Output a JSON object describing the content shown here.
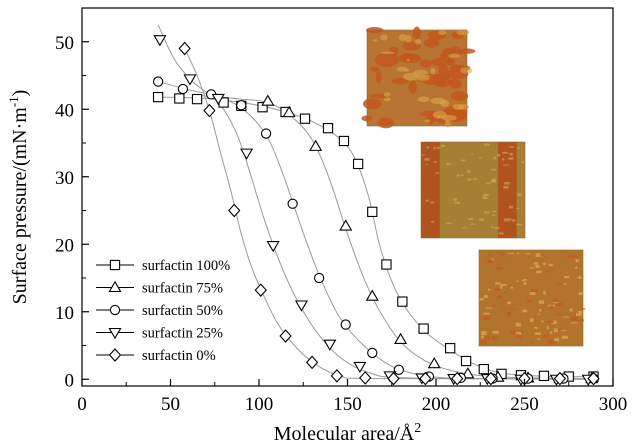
{
  "chart_data": {
    "type": "line",
    "xlabel": "Molecular area/Å",
    "xlabel_sup": "2",
    "ylabel": "Surface pressure/(mN·m",
    "ylabel_sup": "-1",
    "ylabel_close": ")",
    "xlim": [
      0,
      300
    ],
    "ylim": [
      -1,
      55
    ],
    "xticks": [
      0,
      50,
      100,
      150,
      200,
      250,
      300
    ],
    "yticks": [
      0,
      10,
      20,
      30,
      40,
      50
    ],
    "grid": false,
    "legend_position": "bottom-left",
    "line_color": "#9a9a9a",
    "insets": [
      {
        "name": "surfactin 100% AFM image",
        "base": "#b87432",
        "spot": "#c2571d",
        "light": "#d8a64a",
        "pattern": "blotches"
      },
      {
        "name": "surfactin 75% AFM image",
        "base": "#a57f34",
        "spot": "#b3481a",
        "light": "#d0b457",
        "pattern": "bands"
      },
      {
        "name": "surfactin 50% AFM image",
        "base": "#b2732b",
        "spot": "#c25b21",
        "light": "#d8a850",
        "pattern": "speckle"
      }
    ],
    "series": [
      {
        "name": "surfactin 100%",
        "marker": "square",
        "points": [
          [
            43,
            41.8
          ],
          [
            55,
            41.6
          ],
          [
            65,
            41.5
          ],
          [
            80,
            41.0
          ],
          [
            90,
            40.5
          ],
          [
            102,
            40.3
          ],
          [
            115,
            39.6
          ],
          [
            126,
            38.6
          ],
          [
            139,
            37.2
          ],
          [
            148,
            35.3
          ],
          [
            156,
            31.9
          ],
          [
            164,
            24.8
          ],
          [
            172,
            17.0
          ],
          [
            181,
            11.5
          ],
          [
            193,
            7.5
          ],
          [
            208,
            4.6
          ],
          [
            217,
            2.7
          ],
          [
            227,
            1.5
          ],
          [
            237,
            0.8
          ],
          [
            248,
            0.6
          ],
          [
            261,
            0.5
          ],
          [
            275,
            0.4
          ],
          [
            289,
            0.4
          ]
        ],
        "curve": [
          [
            43,
            41.8
          ],
          [
            70,
            41.6
          ],
          [
            95,
            40.8
          ],
          [
            115,
            39.6
          ],
          [
            130,
            38.2
          ],
          [
            145,
            35.8
          ],
          [
            154,
            32.8
          ],
          [
            162,
            27
          ],
          [
            168,
            20
          ],
          [
            175,
            14.5
          ],
          [
            183,
            10.5
          ],
          [
            195,
            6.8
          ],
          [
            210,
            4.0
          ],
          [
            222,
            2.2
          ],
          [
            235,
            1.0
          ],
          [
            250,
            0.6
          ],
          [
            270,
            0.4
          ],
          [
            290,
            0.4
          ]
        ]
      },
      {
        "name": "surfactin 75%",
        "marker": "triangle-up",
        "points": [
          [
            105,
            41.2
          ],
          [
            117,
            39.5
          ],
          [
            132,
            34.5
          ],
          [
            149,
            22.7
          ],
          [
            164,
            12.3
          ],
          [
            180,
            5.9
          ],
          [
            199,
            2.3
          ],
          [
            218,
            0.8
          ],
          [
            235,
            0.3
          ],
          [
            252,
            0.2
          ],
          [
            270,
            0.1
          ],
          [
            288,
            0.1
          ]
        ],
        "curve": [
          [
            68,
            42
          ],
          [
            90,
            41.5
          ],
          [
            105,
            41.0
          ],
          [
            118,
            39.0
          ],
          [
            130,
            35.5
          ],
          [
            140,
            29.5
          ],
          [
            150,
            21.5
          ],
          [
            160,
            14.5
          ],
          [
            170,
            9.3
          ],
          [
            182,
            5.0
          ],
          [
            198,
            2.2
          ],
          [
            218,
            0.8
          ],
          [
            240,
            0.3
          ],
          [
            290,
            0.1
          ]
        ]
      },
      {
        "name": "surfactin 50%",
        "marker": "circle",
        "points": [
          [
            43,
            44.1
          ],
          [
            57,
            43.0
          ],
          [
            73,
            42.2
          ],
          [
            90,
            40.6
          ],
          [
            104,
            36.4
          ],
          [
            119,
            26.0
          ],
          [
            134,
            15.0
          ],
          [
            149,
            8.1
          ],
          [
            164,
            3.9
          ],
          [
            179,
            1.4
          ],
          [
            196,
            0.4
          ],
          [
            214,
            0.2
          ],
          [
            232,
            0.1
          ],
          [
            252,
            0.1
          ],
          [
            272,
            0.1
          ],
          [
            289,
            0.1
          ]
        ],
        "curve": [
          [
            43,
            44.1
          ],
          [
            60,
            42.9
          ],
          [
            78,
            41.8
          ],
          [
            92,
            39.8
          ],
          [
            104,
            36.2
          ],
          [
            112,
            31.5
          ],
          [
            120,
            25.5
          ],
          [
            128,
            19.5
          ],
          [
            136,
            14.2
          ],
          [
            146,
            9.0
          ],
          [
            160,
            4.8
          ],
          [
            176,
            1.8
          ],
          [
            195,
            0.5
          ],
          [
            220,
            0.1
          ],
          [
            290,
            0.1
          ]
        ]
      },
      {
        "name": "surfactin 25%",
        "marker": "triangle-down",
        "points": [
          [
            44,
            50.3
          ],
          [
            61,
            44.5
          ],
          [
            77,
            41.6
          ],
          [
            93,
            33.5
          ],
          [
            108,
            19.8
          ],
          [
            124,
            11.0
          ],
          [
            140,
            5.2
          ],
          [
            157,
            1.9
          ],
          [
            174,
            0.5
          ],
          [
            192,
            0.2
          ],
          [
            210,
            0.1
          ],
          [
            229,
            0.1
          ],
          [
            248,
            0.0
          ],
          [
            268,
            0.0
          ],
          [
            286,
            0.0
          ]
        ],
        "curve": [
          [
            43,
            52.5
          ],
          [
            52,
            47.5
          ],
          [
            62,
            44.2
          ],
          [
            72,
            42.2
          ],
          [
            80,
            40
          ],
          [
            88,
            36.0
          ],
          [
            95,
            30.5
          ],
          [
            102,
            24.5
          ],
          [
            110,
            18.5
          ],
          [
            120,
            12.5
          ],
          [
            132,
            7.2
          ],
          [
            146,
            3.2
          ],
          [
            162,
            1.0
          ],
          [
            185,
            0.2
          ],
          [
            290,
            0.0
          ]
        ]
      },
      {
        "name": "surfactin 0%",
        "marker": "diamond",
        "points": [
          [
            58,
            49.0
          ],
          [
            72,
            39.8
          ],
          [
            86,
            25.0
          ],
          [
            101,
            13.2
          ],
          [
            115,
            6.4
          ],
          [
            130,
            2.5
          ],
          [
            144,
            0.5
          ],
          [
            160,
            0.2
          ],
          [
            176,
            0.1
          ],
          [
            194,
            0.1
          ],
          [
            212,
            0.1
          ],
          [
            231,
            0.1
          ],
          [
            250,
            0.1
          ],
          [
            270,
            0.1
          ],
          [
            289,
            0.1
          ]
        ],
        "curve": [
          [
            58,
            49.0
          ],
          [
            65,
            45.0
          ],
          [
            72,
            39.8
          ],
          [
            78,
            33.8
          ],
          [
            84,
            28.0
          ],
          [
            90,
            21.5
          ],
          [
            96,
            16.5
          ],
          [
            102,
            12.8
          ],
          [
            110,
            8.5
          ],
          [
            120,
            5.0
          ],
          [
            132,
            2.2
          ],
          [
            146,
            0.5
          ],
          [
            165,
            0.1
          ],
          [
            290,
            0.1
          ]
        ]
      }
    ]
  }
}
